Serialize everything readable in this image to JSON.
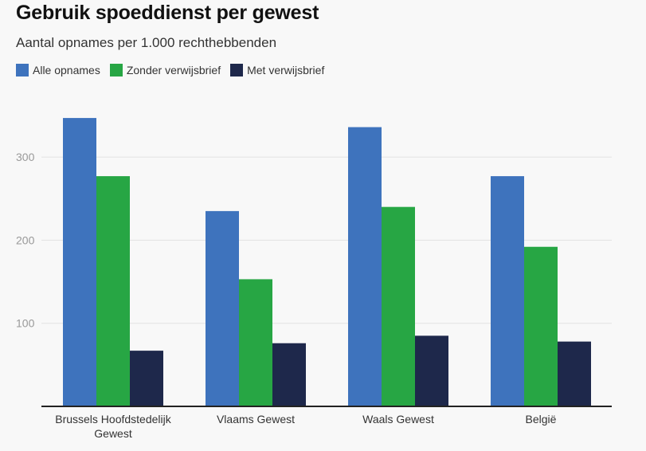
{
  "chart_data": {
    "type": "bar",
    "title": "Gebruik spoeddienst per gewest",
    "subtitle": "Aantal opnames per 1.000 rechthebbenden",
    "categories": [
      [
        "Brussels Hoofdstedelijk",
        "Gewest"
      ],
      [
        "Vlaams Gewest"
      ],
      [
        "Waals Gewest"
      ],
      [
        "België"
      ]
    ],
    "series": [
      {
        "name": "Alle opnames",
        "color": "#3e73bd",
        "values": [
          347,
          235,
          336,
          277
        ]
      },
      {
        "name": "Zonder verwijsbrief",
        "color": "#27a644",
        "values": [
          277,
          153,
          240,
          192
        ]
      },
      {
        "name": "Met verwijsbrief",
        "color": "#1e284b",
        "values": [
          67,
          76,
          85,
          78
        ]
      }
    ],
    "yticks": [
      100,
      200,
      300
    ],
    "ylim": [
      0,
      385
    ],
    "grid": true,
    "legend_position": "top-left"
  }
}
